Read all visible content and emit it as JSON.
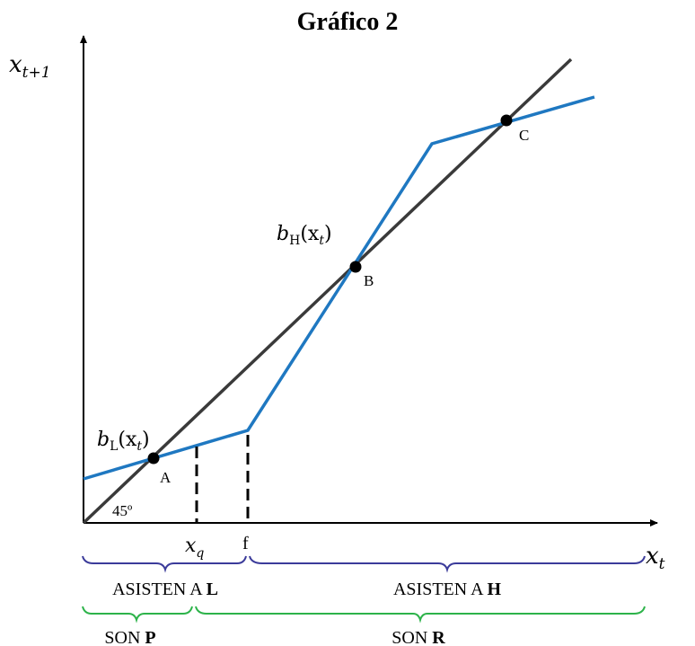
{
  "title": "Gráfico 2",
  "axes": {
    "y_label_base": "x",
    "y_label_sub": "t+1",
    "x_label_base": "x",
    "x_label_sub": "t"
  },
  "angle_label": "45º",
  "curves": {
    "bL_base": "b",
    "bL_sub": "L",
    "bL_arg": "(x",
    "bL_arg_sub": "t",
    "bL_close": ")",
    "bH_base": "b",
    "bH_sub": "H",
    "bH_arg": "(x",
    "bH_arg_sub": "t",
    "bH_close": ")"
  },
  "points": {
    "A": "A",
    "B": "B",
    "C": "C"
  },
  "thresholds": {
    "xq_base": "x",
    "xq_sub": "q",
    "f": "f"
  },
  "brackets": {
    "asisten_L_prefix": "ASISTEN A ",
    "asisten_L_bold": "L",
    "asisten_H_prefix": "ASISTEN A ",
    "asisten_H_bold": "H",
    "son_P_prefix": "SON ",
    "son_P_bold": "P",
    "son_R_prefix": "SON ",
    "son_R_bold": "R"
  },
  "colors": {
    "diagonal": "#3a3a3a",
    "curve": "#1f78c1",
    "bracket_top": "#3b3b9a",
    "bracket_bottom": "#2db34a",
    "axis": "#000000"
  }
}
